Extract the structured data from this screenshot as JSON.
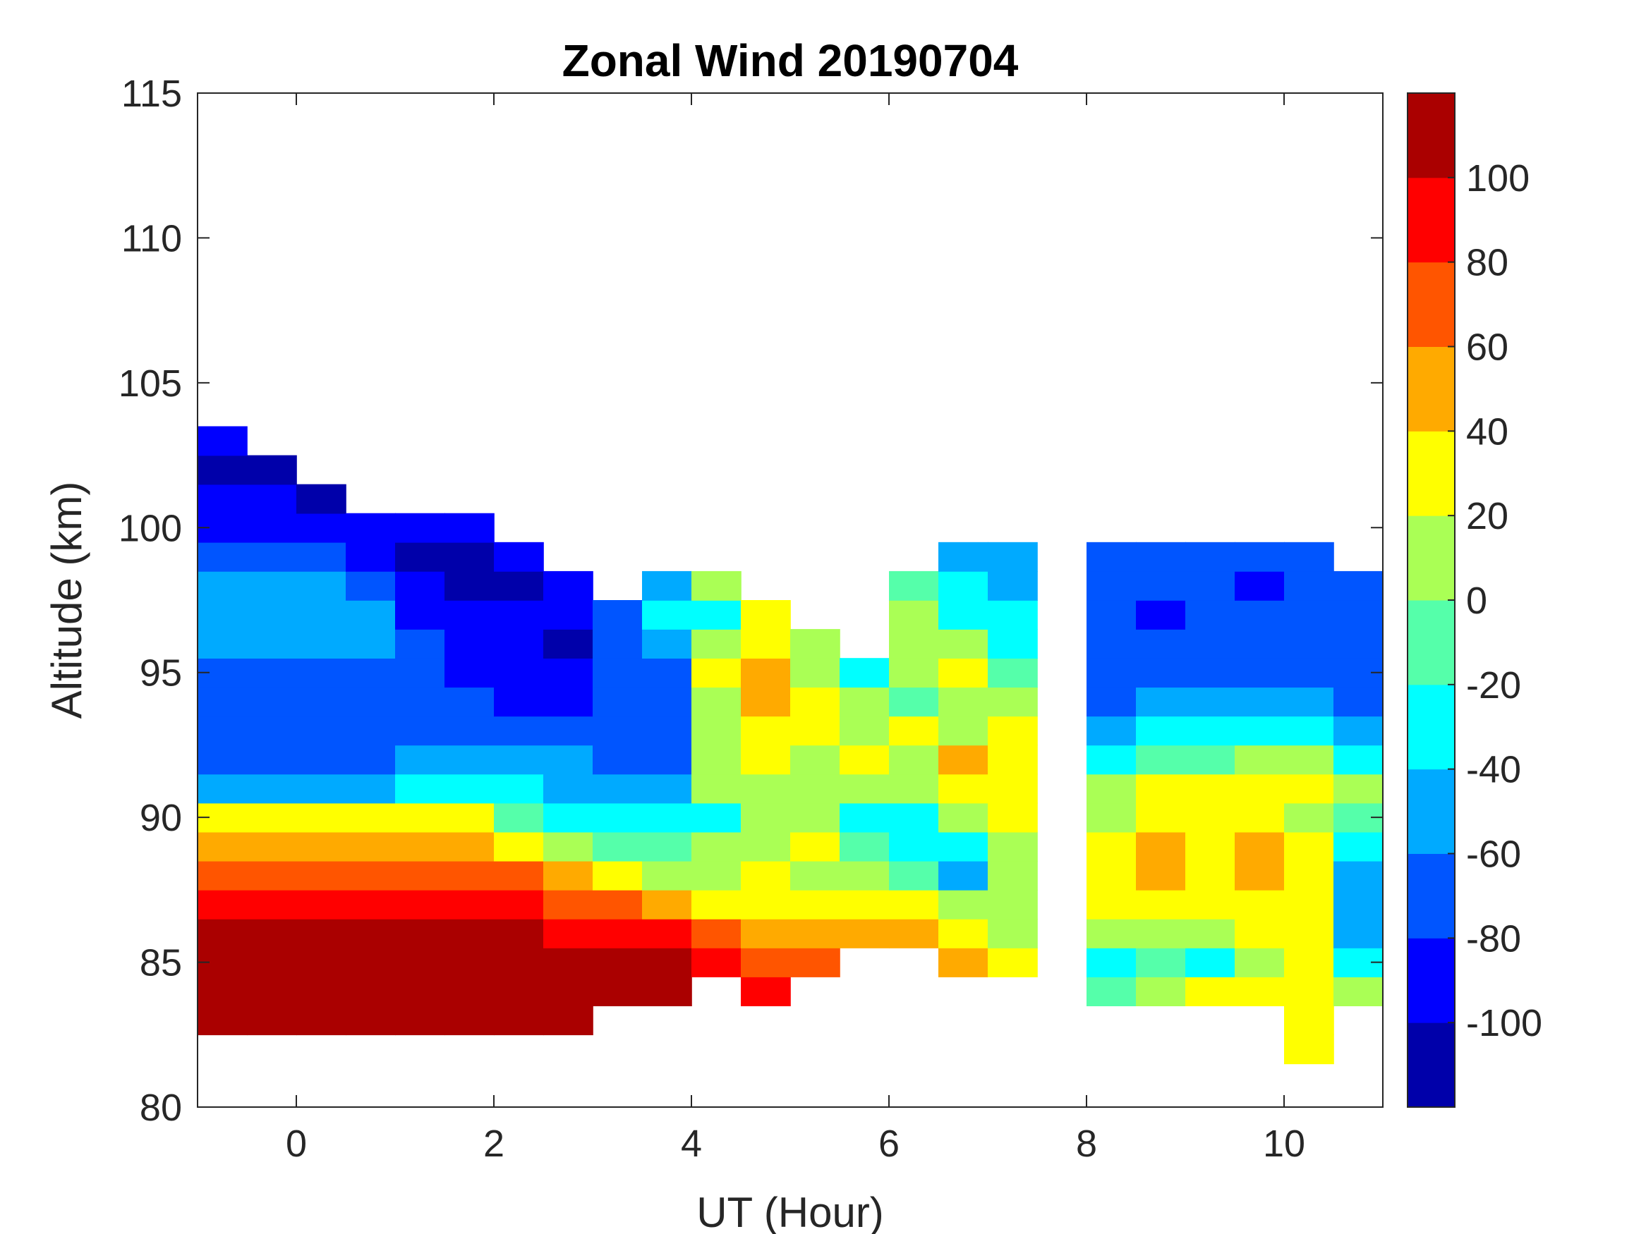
{
  "chart_data": {
    "type": "heatmap",
    "subtype": "filled-contour",
    "title": "Zonal Wind 20190704",
    "xlabel": "UT (Hour)",
    "ylabel": "Altitude (km)",
    "xlim": [
      -1,
      11
    ],
    "ylim": [
      80,
      115
    ],
    "xticks": [
      0,
      2,
      4,
      6,
      8,
      10
    ],
    "xtick_labels": [
      "0",
      "2",
      "4",
      "6",
      "8",
      "10"
    ],
    "yticks": [
      80,
      85,
      90,
      95,
      100,
      105,
      110,
      115
    ],
    "ytick_labels": [
      "80",
      "85",
      "90",
      "95",
      "100",
      "105",
      "110",
      "115"
    ],
    "colorbar": {
      "range": [
        -120,
        120
      ],
      "levels": [
        -120,
        -100,
        -80,
        -60,
        -40,
        -20,
        0,
        20,
        40,
        60,
        80,
        100,
        120
      ],
      "colors": [
        "#0000aa",
        "#0000ff",
        "#0055ff",
        "#00aaff",
        "#00ffff",
        "#55ffaa",
        "#aaff55",
        "#ffff00",
        "#ffaa00",
        "#ff5500",
        "#ff0000",
        "#aa0000"
      ],
      "ticks": [
        -100,
        -80,
        -60,
        -40,
        -20,
        0,
        20,
        40,
        60,
        80,
        100
      ],
      "tick_labels": [
        "-100",
        "-80",
        "-60",
        "-40",
        "-20",
        "0",
        "20",
        "40",
        "60",
        "80",
        "100"
      ]
    },
    "bin_width_hours": 0.5,
    "columns": [
      {
        "x": -0.75,
        "alt_start": 83,
        "values": [
          110,
          110,
          110,
          110,
          90,
          70,
          50,
          30,
          -50,
          -70,
          -70,
          -70,
          -70,
          -50,
          -50,
          -50,
          -70,
          -90,
          -90,
          -110,
          -90
        ]
      },
      {
        "x": -0.25,
        "alt_start": 83,
        "values": [
          110,
          110,
          110,
          110,
          90,
          70,
          50,
          30,
          -50,
          -70,
          -70,
          -70,
          -70,
          -50,
          -50,
          -50,
          -70,
          -90,
          -90,
          -110
        ]
      },
      {
        "x": 0.25,
        "alt_start": 83,
        "values": [
          110,
          110,
          110,
          110,
          90,
          70,
          50,
          30,
          -50,
          -70,
          -70,
          -70,
          -70,
          -50,
          -50,
          -50,
          -70,
          -90,
          -110
        ]
      },
      {
        "x": 0.75,
        "alt_start": 83,
        "values": [
          110,
          110,
          110,
          110,
          90,
          70,
          50,
          30,
          -50,
          -70,
          -70,
          -70,
          -70,
          -50,
          -50,
          -70,
          -90,
          -90
        ]
      },
      {
        "x": 1.25,
        "alt_start": 83,
        "values": [
          110,
          110,
          110,
          110,
          90,
          70,
          50,
          30,
          -30,
          -50,
          -70,
          -70,
          -70,
          -70,
          -90,
          -90,
          -110,
          -90
        ]
      },
      {
        "x": 1.75,
        "alt_start": 83,
        "values": [
          110,
          110,
          110,
          110,
          90,
          70,
          50,
          30,
          -30,
          -50,
          -70,
          -70,
          -90,
          -90,
          -90,
          -110,
          -110,
          -90
        ]
      },
      {
        "x": 2.25,
        "alt_start": 83,
        "values": [
          110,
          110,
          110,
          110,
          90,
          70,
          30,
          -10,
          -30,
          -50,
          -70,
          -90,
          -90,
          -90,
          -90,
          -110,
          -90
        ]
      },
      {
        "x": 2.75,
        "alt_start": 83,
        "values": [
          110,
          110,
          110,
          90,
          70,
          50,
          10,
          -30,
          -50,
          -50,
          -70,
          -90,
          -90,
          -110,
          -90,
          -90
        ]
      },
      {
        "x": 3.25,
        "alt_start": 84,
        "values": [
          110,
          110,
          90,
          70,
          30,
          -10,
          -30,
          -50,
          -70,
          -70,
          -70,
          -70,
          -70,
          -70
        ]
      },
      {
        "x": 3.75,
        "alt_start": 84,
        "values": [
          110,
          110,
          90,
          50,
          10,
          -10,
          -30,
          -50,
          -70,
          -70,
          -70,
          -70,
          -50,
          -30,
          -50
        ]
      },
      {
        "x": 4.25,
        "alt_start": 85,
        "values": [
          90,
          70,
          30,
          10,
          10,
          -30,
          10,
          10,
          10,
          10,
          30,
          10,
          -30,
          10
        ]
      },
      {
        "x": 4.75,
        "alt_start": 84,
        "values": [
          90,
          70,
          50,
          30,
          30,
          10,
          10,
          10,
          30,
          30,
          50,
          50,
          30,
          30
        ]
      },
      {
        "x": 5.25,
        "alt_start": 85,
        "values": [
          70,
          50,
          30,
          10,
          30,
          10,
          10,
          10,
          30,
          30,
          10,
          10
        ]
      },
      {
        "x": 5.75,
        "alt_start": 86,
        "values": [
          50,
          30,
          10,
          -10,
          -30,
          10,
          30,
          10,
          10,
          -30
        ]
      },
      {
        "x": 6.25,
        "alt_start": 86,
        "values": [
          50,
          30,
          -10,
          -30,
          -30,
          10,
          10,
          30,
          -10,
          10,
          10,
          10,
          -10
        ]
      },
      {
        "x": 6.75,
        "alt_start": 85,
        "values": [
          50,
          30,
          10,
          -50,
          -30,
          10,
          30,
          50,
          10,
          10,
          30,
          10,
          -30,
          -30,
          -50
        ]
      },
      {
        "x": 7.25,
        "alt_start": 85,
        "values": [
          30,
          10,
          10,
          10,
          10,
          30,
          30,
          30,
          30,
          10,
          -10,
          -30,
          -30,
          -50,
          -50
        ]
      },
      {
        "x": 8.25,
        "alt_start": 84,
        "values": [
          -10,
          -30,
          10,
          30,
          30,
          30,
          10,
          10,
          -30,
          -50,
          -70,
          -70,
          -70,
          -70,
          -70,
          -70
        ]
      },
      {
        "x": 8.75,
        "alt_start": 84,
        "values": [
          10,
          -10,
          10,
          30,
          50,
          50,
          30,
          30,
          -10,
          -30,
          -50,
          -70,
          -70,
          -90,
          -70,
          -70
        ]
      },
      {
        "x": 9.25,
        "alt_start": 84,
        "values": [
          30,
          -30,
          10,
          30,
          30,
          30,
          30,
          30,
          -10,
          -30,
          -50,
          -70,
          -70,
          -70,
          -70,
          -70
        ]
      },
      {
        "x": 9.75,
        "alt_start": 84,
        "values": [
          30,
          10,
          30,
          30,
          50,
          50,
          30,
          30,
          10,
          -30,
          -50,
          -70,
          -70,
          -70,
          -90,
          -70
        ]
      },
      {
        "x": 10.25,
        "alt_start": 82,
        "values": [
          30,
          30,
          30,
          30,
          30,
          30,
          30,
          30,
          10,
          30,
          10,
          -30,
          -50,
          -70,
          -70,
          -70,
          -70,
          -70
        ]
      },
      {
        "x": 10.75,
        "alt_start": 84,
        "values": [
          10,
          -30,
          -50,
          -50,
          -50,
          -30,
          -10,
          10,
          -30,
          -50,
          -70,
          -70,
          -70,
          -70,
          -70
        ]
      }
    ]
  }
}
